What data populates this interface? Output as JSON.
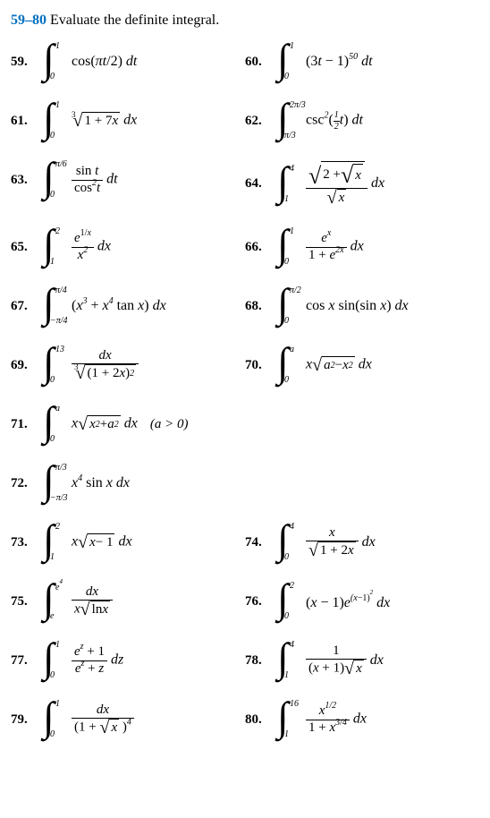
{
  "heading": {
    "range": "59–80",
    "text": "Evaluate the definite integral.",
    "range_color": "#0070c0"
  },
  "problems": [
    {
      "num": "59.",
      "lower": "0",
      "upper": "1",
      "body": "<span class='rm'>cos(</span>πt<span class='rm'>/2)</span> dt"
    },
    {
      "num": "60.",
      "lower": "0",
      "upper": "1",
      "body": "<span class='rm'>(3</span>t <span class='rm'>− 1)</span><sup>50</sup> dt"
    },
    {
      "num": "61.",
      "lower": "0",
      "upper": "1",
      "body": "<span class='sqrt'><span class='index'>3</span><span class='radical'>√</span><span class='radicand'><span class='rm'>1 + 7</span>x</span></span> dx"
    },
    {
      "num": "62.",
      "lower": "π/3",
      "upper": "2π/3",
      "body": "<span class='rm'>csc</span><sup>2</sup><span class='rm'>(</span><span class='frac small'><span class='n'>1</span><span class='d'>2</span></span>t<span class='rm'>)</span> dt"
    },
    {
      "num": "63.",
      "lower": "0",
      "upper": "π/6",
      "body": "<span class='frac'><span class='n'><span class='rm'>sin </span>t</span><span class='d'><span class='rm'>cos</span><sup>2</sup>t</span></span> dt"
    },
    {
      "num": "64.",
      "lower": "1",
      "upper": "4",
      "body": "<span class='frac'><span class='n'><span class='sqrt tall'><span class='radical'>√</span><span class='radicand'><span class='rm'>2 + </span><span class='sqrt'><span class='radical'>√</span><span class='radicand'>x</span></span></span></span></span><span class='d'><span class='sqrt'><span class='radical'>√</span><span class='radicand'>x</span></span></span></span> dx"
    },
    {
      "num": "65.",
      "lower": "1",
      "upper": "2",
      "body": "<span class='frac'><span class='n'>e<sup><span class='rm'>1/</span>x</sup></span><span class='d'>x<sup>2</sup></span></span> dx"
    },
    {
      "num": "66.",
      "lower": "0",
      "upper": "1",
      "body": "<span class='frac'><span class='n'>e<sup>x</sup></span><span class='d'><span class='rm'>1 + </span>e<sup>2x</sup></span></span> dx"
    },
    {
      "num": "67.",
      "lower": "−π/4",
      "upper": "π/4",
      "body": "<span class='rm'>(</span>x<sup>3</sup> <span class='rm'>+</span> x<sup>4</sup> <span class='rm'>tan </span>x<span class='rm'>)</span> dx"
    },
    {
      "num": "68.",
      "lower": "0",
      "upper": "π/2",
      "body": "<span class='rm'>cos </span>x <span class='rm'>sin(sin </span>x<span class='rm'>)</span> dx"
    },
    {
      "num": "69.",
      "lower": "0",
      "upper": "13",
      "body": "<span class='frac'><span class='n'>dx</span><span class='d'><span class='sqrt'><span class='index'>3</span><span class='radical'>√</span><span class='radicand'><span class='rm'>(1 + 2</span>x<span class='rm'>)</span><sup>2</sup></span></span></span></span>"
    },
    {
      "num": "70.",
      "lower": "0",
      "upper": "a",
      "body": "x<span class='sqrt'><span class='radical'>√</span><span class='radicand'>a<sup>2</sup> <span class='rm'>−</span> x<sup>2</sup></span></span> dx"
    },
    {
      "num": "71.",
      "lower": "0",
      "upper": "a",
      "full": true,
      "body": "x<span class='sqrt'><span class='radical'>√</span><span class='radicand'>x<sup>2</sup> <span class='rm'>+</span> a<sup>2</sup></span></span> dx",
      "after": "(a &gt; 0)"
    },
    {
      "num": "72.",
      "lower": "−π/3",
      "upper": "π/3",
      "full": true,
      "body": "x<sup>4</sup> <span class='rm'>sin </span>x dx"
    },
    {
      "num": "73.",
      "lower": "1",
      "upper": "2",
      "body": "x<span class='sqrt'><span class='radical'>√</span><span class='radicand'>x <span class='rm'>− 1</span></span></span> dx"
    },
    {
      "num": "74.",
      "lower": "0",
      "upper": "4",
      "body": "<span class='frac'><span class='n'>x</span><span class='d'><span class='sqrt'><span class='radical'>√</span><span class='radicand'><span class='rm'>1 + 2</span>x</span></span></span></span> dx"
    },
    {
      "num": "75.",
      "lower": "e",
      "upper": "e<sup style='font-size:7px'>4</sup>",
      "body": "<span class='frac'><span class='n'>dx</span><span class='d'>x<span class='sqrt'><span class='radical'>√</span><span class='radicand'><span class='rm'>ln </span>x</span></span></span></span>"
    },
    {
      "num": "76.",
      "lower": "0",
      "upper": "2",
      "body": "<span class='rm'>(</span>x <span class='rm'>− 1)</span>e<sup>(x<span class='rm'>−1)</span><sup style='font-size:7px'>2</sup></sup> dx"
    },
    {
      "num": "77.",
      "lower": "0",
      "upper": "1",
      "body": "<span class='frac'><span class='n'>e<sup>z</sup> <span class='rm'>+ 1</span></span><span class='d'>e<sup>z</sup> <span class='rm'>+</span> z</span></span> dz"
    },
    {
      "num": "78.",
      "lower": "1",
      "upper": "4",
      "body": "<span class='frac'><span class='n'><span class='rm'>1</span></span><span class='d'><span class='rm'>(</span>x <span class='rm'>+ 1)</span><span class='sqrt'><span class='radical'>√</span><span class='radicand'>x</span></span></span></span> dx"
    },
    {
      "num": "79.",
      "lower": "0",
      "upper": "1",
      "body": "<span class='frac'><span class='n'>dx</span><span class='d'><span class='rm'>(1 + </span><span class='sqrt'><span class='radical'>√</span><span class='radicand'>x</span></span> <span class='rm'>)</span><sup>4</sup></span></span>"
    },
    {
      "num": "80.",
      "lower": "1",
      "upper": "16",
      "body": "<span class='frac'><span class='n'>x<sup>1/2</sup></span><span class='d'><span class='rm'>1 + </span>x<sup>3/4</sup></span></span> dx"
    }
  ]
}
